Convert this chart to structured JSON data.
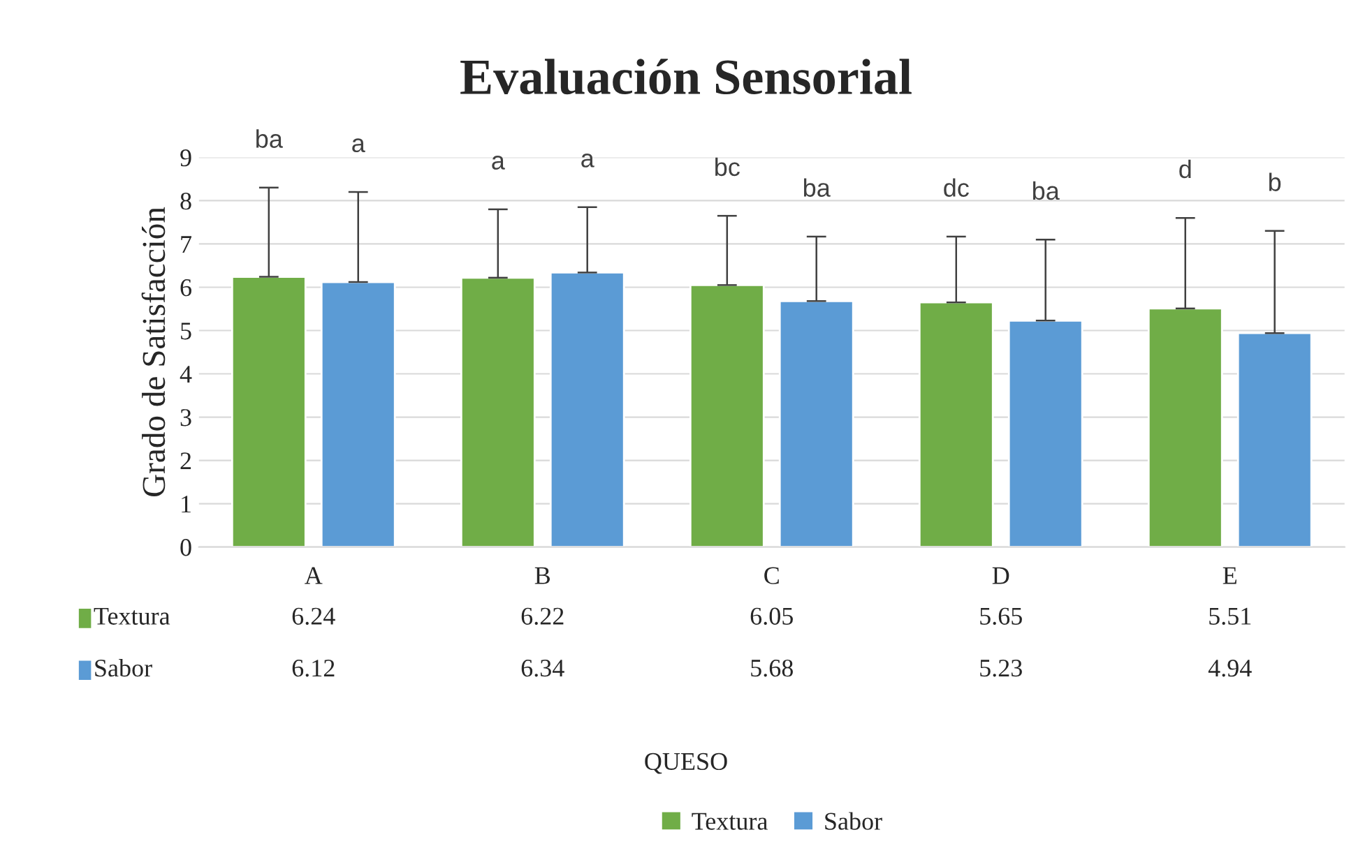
{
  "chart_data": {
    "type": "bar",
    "title": "Evaluación Sensorial",
    "ylabel": "Grado de Satisfacción",
    "categories": [
      "A",
      "B",
      "C",
      "D",
      "E"
    ],
    "series": [
      {
        "name": "Textura",
        "color": "#70ad47",
        "values": [
          6.24,
          6.22,
          6.05,
          5.65,
          5.51
        ],
        "errors": [
          [
            6.24,
            8.3
          ],
          [
            6.22,
            7.8
          ],
          [
            6.05,
            7.65
          ],
          [
            5.65,
            7.17
          ],
          [
            5.51,
            7.6
          ]
        ]
      },
      {
        "name": "Sabor",
        "color": "#5b9bd5",
        "values": [
          6.12,
          6.34,
          5.68,
          5.23,
          4.94
        ],
        "errors": [
          [
            6.12,
            8.2
          ],
          [
            6.34,
            7.85
          ],
          [
            5.68,
            7.17
          ],
          [
            5.23,
            7.1
          ],
          [
            4.94,
            7.3
          ]
        ]
      }
    ],
    "annotations": [
      "ba",
      "a",
      "a",
      "a",
      "bc",
      "ba",
      "dc",
      "ba",
      "d",
      "b",
      "QUESO"
    ],
    "ylim": [
      0,
      9
    ],
    "yticks": [
      0,
      1,
      2,
      3,
      4,
      5,
      6,
      7,
      8,
      9
    ],
    "grid": "y",
    "legend": "bottom",
    "data_labels": true
  }
}
